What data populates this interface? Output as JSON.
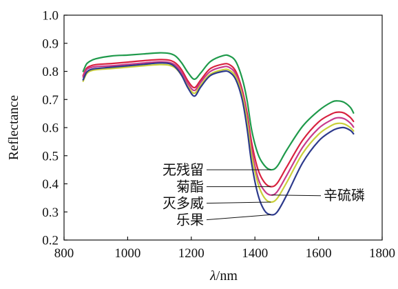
{
  "chart_data": {
    "type": "line",
    "xlabel": "λ/nm",
    "ylabel": "Reflectance",
    "xlim": [
      800,
      1800
    ],
    "ylim": [
      0.2,
      1.0
    ],
    "xticks": [
      800,
      1000,
      1200,
      1400,
      1600,
      1800
    ],
    "yticks": [
      0.2,
      0.3,
      0.4,
      0.5,
      0.6,
      0.7,
      0.8,
      0.9,
      1.0
    ],
    "ytick_labels": [
      "0.2",
      "0.3",
      "0.4",
      "0.5",
      "0.6",
      "0.7",
      "0.8",
      "0.9",
      "1.0"
    ],
    "grid": false,
    "x": [
      860,
      870,
      880,
      900,
      950,
      1000,
      1050,
      1100,
      1130,
      1150,
      1170,
      1190,
      1210,
      1230,
      1260,
      1300,
      1320,
      1340,
      1360,
      1375,
      1390,
      1410,
      1430,
      1450,
      1470,
      1500,
      1550,
      1600,
      1640,
      1660,
      1680,
      1700,
      1710
    ],
    "series": [
      {
        "name": "无残留",
        "color": "#1f9a4b",
        "values": [
          0.8,
          0.825,
          0.835,
          0.845,
          0.855,
          0.858,
          0.862,
          0.866,
          0.864,
          0.855,
          0.83,
          0.795,
          0.772,
          0.795,
          0.835,
          0.856,
          0.855,
          0.835,
          0.775,
          0.7,
          0.59,
          0.505,
          0.465,
          0.45,
          0.462,
          0.52,
          0.605,
          0.66,
          0.69,
          0.695,
          0.69,
          0.672,
          0.652
        ]
      },
      {
        "name": "菊酯",
        "color": "#d8213f",
        "values": [
          0.785,
          0.81,
          0.818,
          0.824,
          0.828,
          0.833,
          0.838,
          0.842,
          0.84,
          0.83,
          0.805,
          0.765,
          0.742,
          0.77,
          0.81,
          0.826,
          0.824,
          0.8,
          0.735,
          0.655,
          0.545,
          0.45,
          0.405,
          0.39,
          0.402,
          0.46,
          0.555,
          0.62,
          0.648,
          0.655,
          0.652,
          0.636,
          0.622
        ]
      },
      {
        "name": "辛硫磷",
        "color": "#c73a8c",
        "values": [
          0.78,
          0.805,
          0.812,
          0.817,
          0.82,
          0.825,
          0.83,
          0.834,
          0.832,
          0.822,
          0.795,
          0.755,
          0.732,
          0.762,
          0.8,
          0.816,
          0.814,
          0.79,
          0.725,
          0.64,
          0.52,
          0.42,
          0.375,
          0.36,
          0.372,
          0.43,
          0.53,
          0.597,
          0.627,
          0.635,
          0.632,
          0.616,
          0.602
        ]
      },
      {
        "name": "灭多威",
        "color": "#c9cf3a",
        "values": [
          0.765,
          0.79,
          0.8,
          0.806,
          0.81,
          0.815,
          0.82,
          0.824,
          0.822,
          0.812,
          0.785,
          0.745,
          0.722,
          0.752,
          0.79,
          0.806,
          0.804,
          0.78,
          0.715,
          0.625,
          0.5,
          0.4,
          0.35,
          0.335,
          0.348,
          0.405,
          0.508,
          0.576,
          0.607,
          0.615,
          0.613,
          0.6,
          0.588
        ]
      },
      {
        "name": "乐果",
        "color": "#2d3a8c",
        "values": [
          0.77,
          0.795,
          0.805,
          0.81,
          0.815,
          0.82,
          0.825,
          0.83,
          0.828,
          0.815,
          0.785,
          0.74,
          0.712,
          0.745,
          0.785,
          0.8,
          0.797,
          0.77,
          0.7,
          0.6,
          0.47,
          0.36,
          0.305,
          0.29,
          0.3,
          0.36,
          0.475,
          0.552,
          0.587,
          0.597,
          0.6,
          0.59,
          0.578
        ]
      }
    ]
  }
}
